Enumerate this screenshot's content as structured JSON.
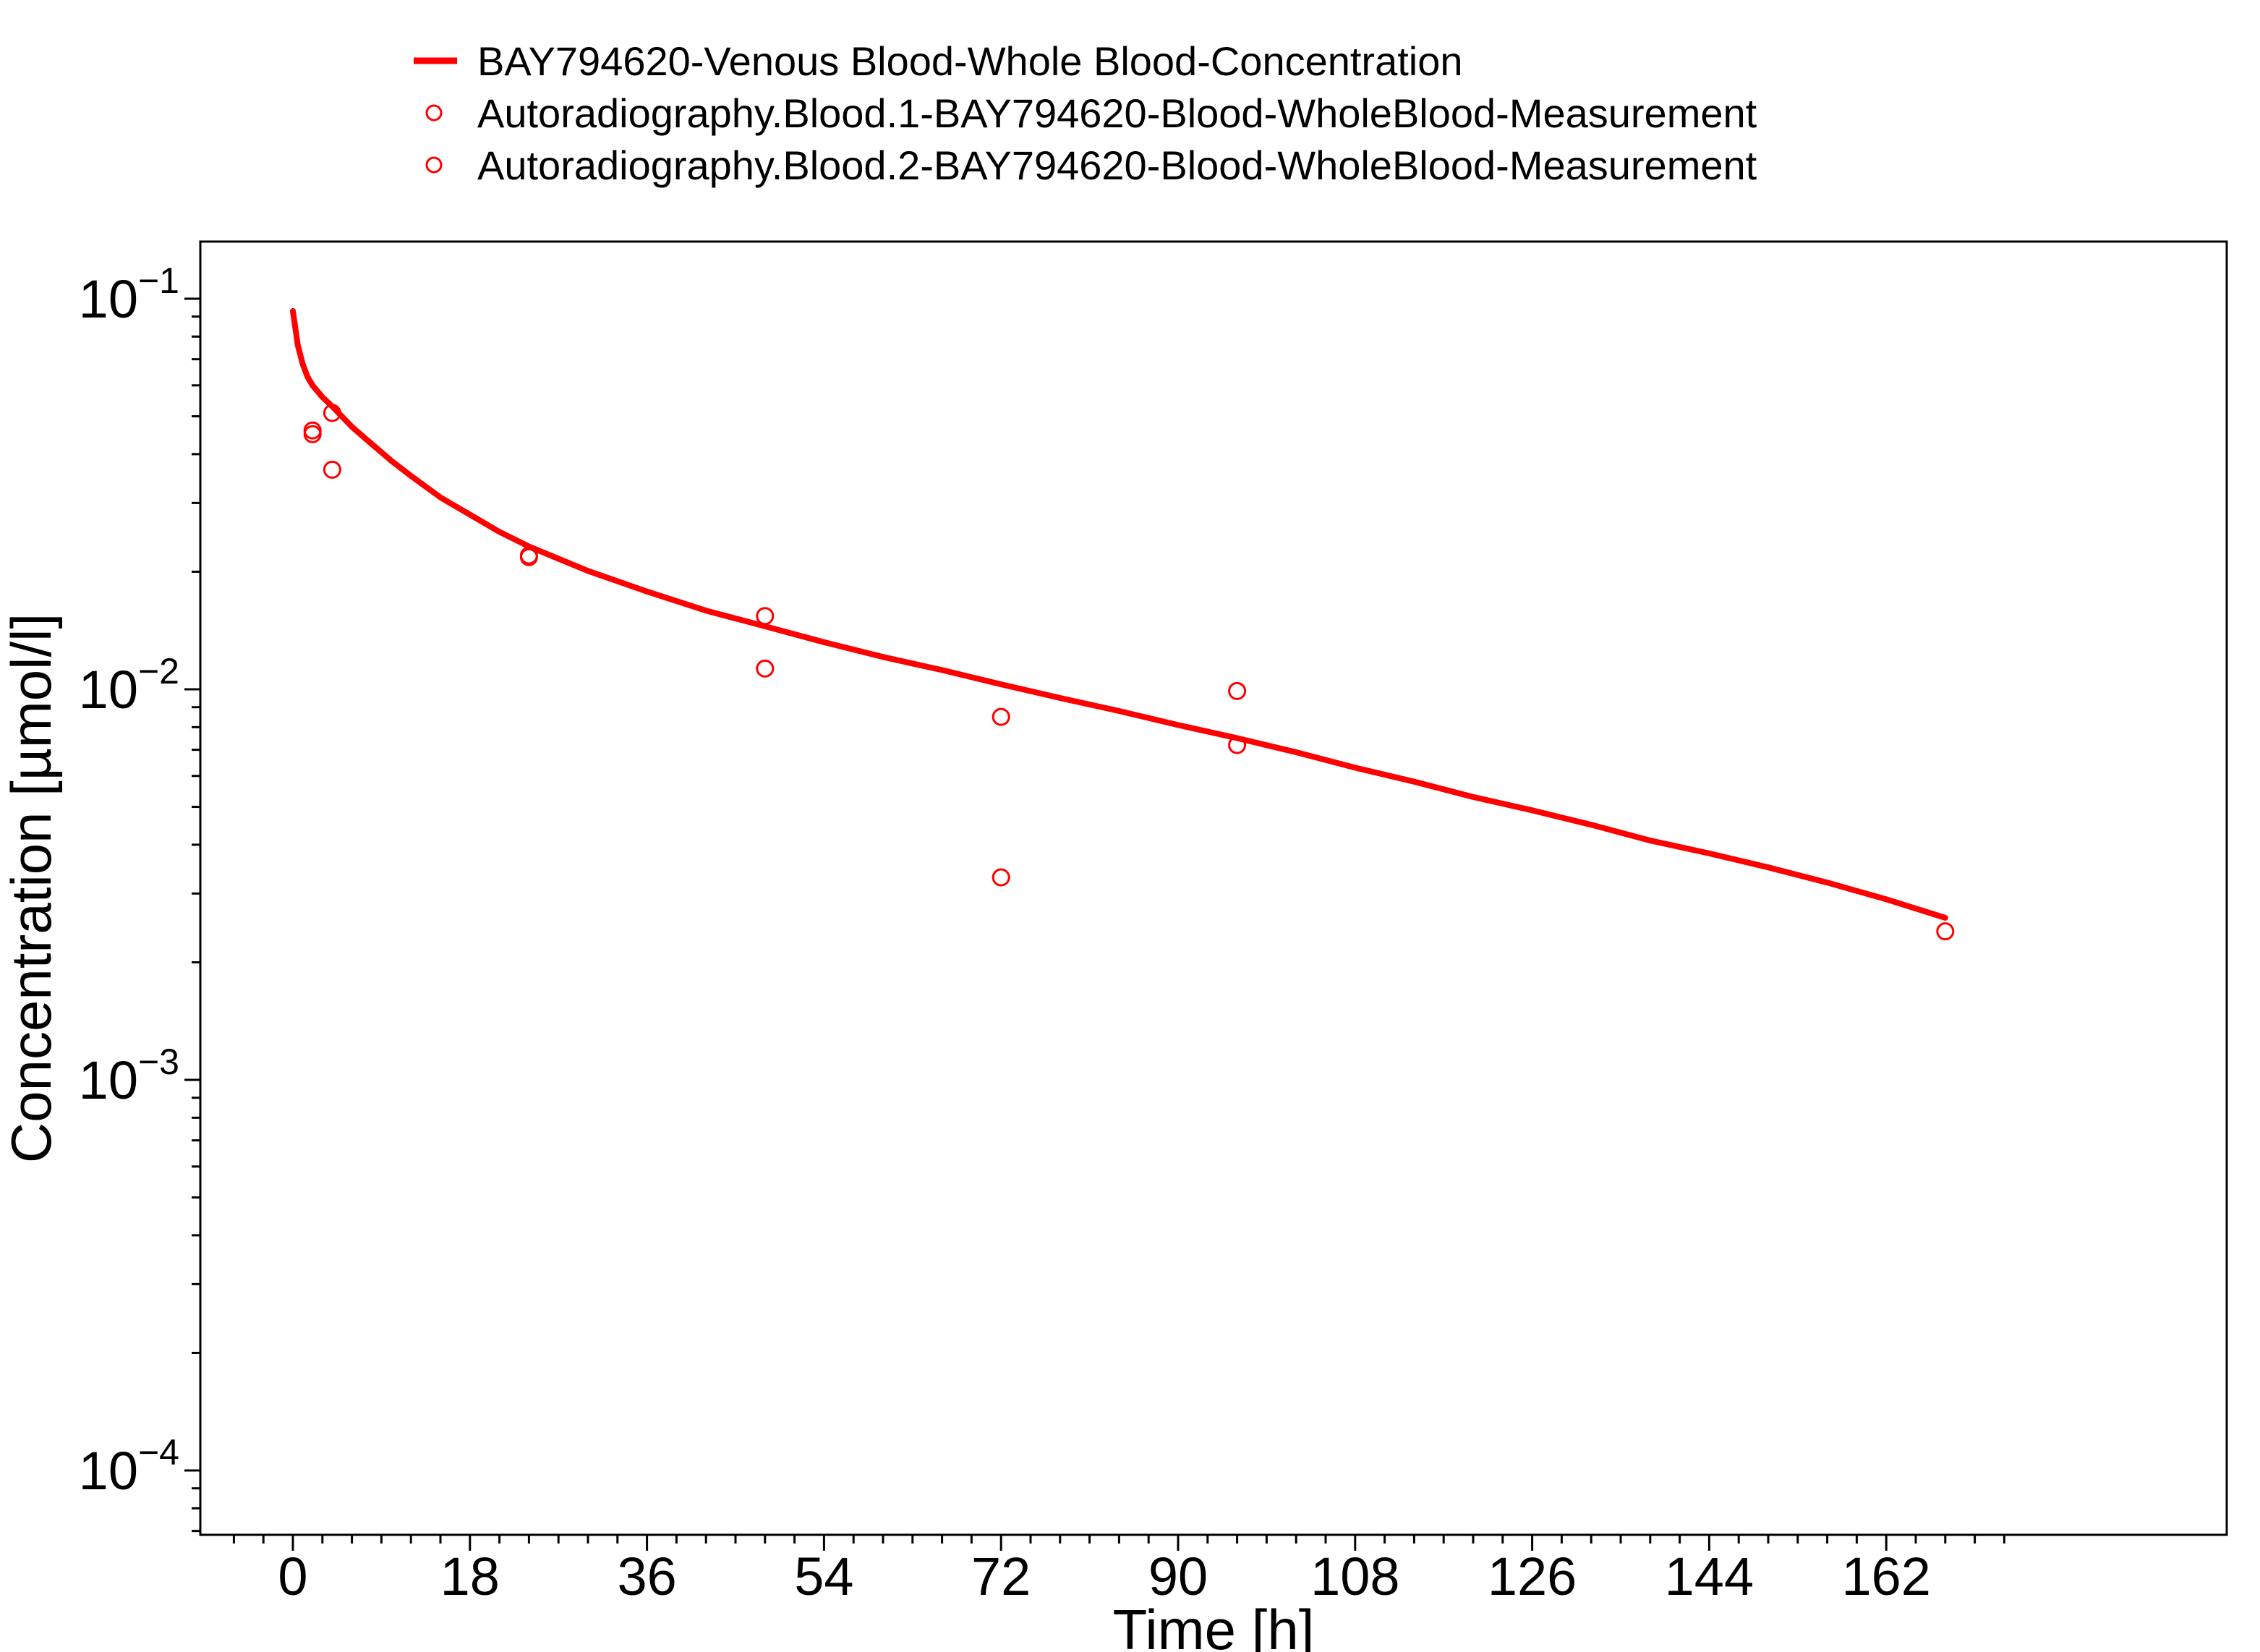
{
  "chart_data": {
    "type": "line",
    "title": "",
    "xlabel": "Time [h]",
    "ylabel": "Concentration [µmol/l]",
    "xlim": [
      -9.5,
      177
    ],
    "ylim": [
      7e-05,
      0.14
    ],
    "y_scale": "log",
    "x_ticks": [
      0,
      18,
      36,
      54,
      72,
      90,
      108,
      126,
      144,
      162
    ],
    "y_ticks": [
      {
        "value": 0.1,
        "base": "10",
        "exp": "−1"
      },
      {
        "value": 0.01,
        "base": "10",
        "exp": "−2"
      },
      {
        "value": 0.001,
        "base": "10",
        "exp": "−3"
      },
      {
        "value": 0.0001,
        "base": "10",
        "exp": "−4"
      }
    ],
    "grid": false,
    "legend_position": "top",
    "color": "#ff0000",
    "series": [
      {
        "name": "BAY794620-Venous Blood-Whole Blood-Concentration",
        "kind": "line",
        "x": [
          0,
          0.5,
          1,
          1.5,
          2,
          3,
          4,
          6,
          8,
          10,
          12,
          15,
          18,
          21,
          24,
          30,
          36,
          42,
          48,
          54,
          60,
          66,
          72,
          78,
          84,
          90,
          96,
          102,
          108,
          114,
          120,
          126,
          132,
          138,
          144,
          150,
          156,
          162,
          168
        ],
        "y": [
          0.093,
          0.076,
          0.068,
          0.063,
          0.06,
          0.056,
          0.053,
          0.047,
          0.0425,
          0.0385,
          0.0352,
          0.031,
          0.028,
          0.0253,
          0.0232,
          0.0201,
          0.0178,
          0.0159,
          0.0145,
          0.0132,
          0.0121,
          0.0112,
          0.0103,
          0.0095,
          0.0088,
          0.0081,
          0.0075,
          0.0069,
          0.0063,
          0.0058,
          0.0053,
          0.0049,
          0.0045,
          0.0041,
          0.0038,
          0.0035,
          0.0032,
          0.0029,
          0.0026
        ]
      },
      {
        "name": "Autoradiography.Blood.1-BAY794620-Blood-WholeBlood-Measurement",
        "kind": "scatter",
        "x": [
          2,
          4,
          24,
          48,
          72,
          96,
          168
        ],
        "y": [
          0.046,
          0.051,
          0.022,
          0.0154,
          0.0085,
          0.0099,
          0.0024
        ]
      },
      {
        "name": "Autoradiography.Blood.2-BAY794620-Blood-WholeBlood-Measurement",
        "kind": "scatter",
        "x": [
          2,
          4,
          24,
          48,
          72,
          96
        ],
        "y": [
          0.045,
          0.0365,
          0.0218,
          0.0113,
          0.0033,
          0.0072
        ]
      }
    ]
  }
}
